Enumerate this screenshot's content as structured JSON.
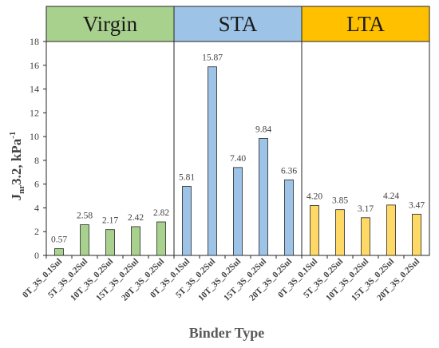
{
  "chart_data": {
    "type": "bar",
    "xlabel": "Binder Type",
    "ylabel_main": "J",
    "ylabel_sub": "nr",
    "ylabel_rest": "3.2, kPa",
    "ylabel_sup": "-1",
    "ylim": [
      0,
      18
    ],
    "yticks": [
      0,
      2,
      4,
      6,
      8,
      10,
      12,
      14,
      16,
      18
    ],
    "grid": false,
    "groups": [
      {
        "name": "Virgin",
        "header_color": "#a9d18e",
        "bar_color": "#a9d18e",
        "categories": [
          "0T_3S_0.1Sul",
          "5T_3S_0.2Sul",
          "10T_3S_0.2Sul",
          "15T_3S_0.2Sul",
          "20T_3S_0.2Sul"
        ],
        "values": [
          0.57,
          2.58,
          2.17,
          2.42,
          2.82
        ],
        "labels": [
          "0.57",
          "2.58",
          "2.17",
          "2.42",
          "2.82"
        ]
      },
      {
        "name": "STA",
        "header_color": "#9dc3e6",
        "bar_color": "#9dc3e6",
        "categories": [
          "0T_3S_0.1Sul",
          "5T_3S_0.2Sul",
          "10T_3S_0.2Sul",
          "15T_3S_0.2Sul",
          "20T_3S_0.2Sul"
        ],
        "values": [
          5.81,
          15.87,
          7.4,
          9.84,
          6.36
        ],
        "labels": [
          "5.81",
          "15.87",
          "7.40",
          "9.84",
          "6.36"
        ]
      },
      {
        "name": "LTA",
        "header_color": "#ffc000",
        "bar_color": "#ffd966",
        "categories": [
          "0T_3S_0.1Sul",
          "5T_3S_0.2Sul",
          "10T_3S_0.2Sul",
          "15T_3S_0.2Sul",
          "20T_3S_0.2Sul"
        ],
        "values": [
          4.2,
          3.85,
          3.17,
          4.24,
          3.47
        ],
        "labels": [
          "4.20",
          "3.85",
          "3.17",
          "4.24",
          "3.47"
        ]
      }
    ]
  }
}
